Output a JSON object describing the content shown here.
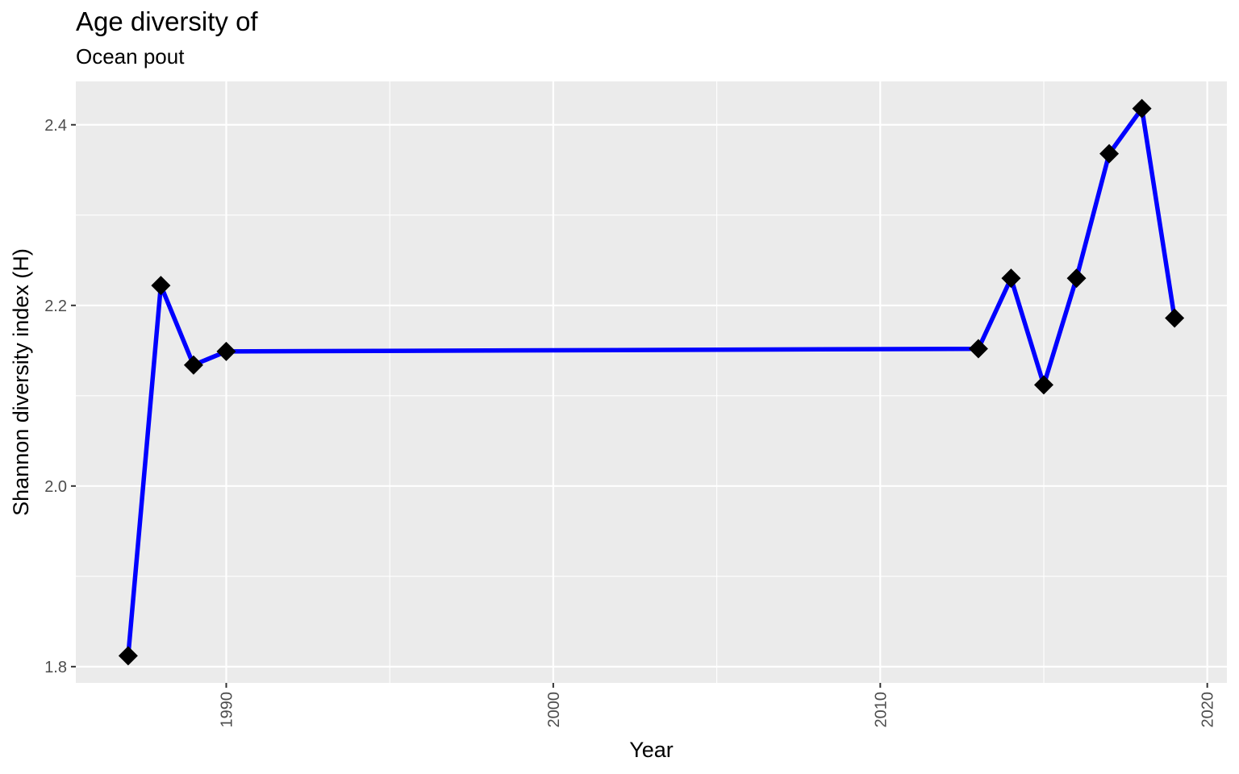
{
  "chart_data": {
    "type": "line",
    "title": "Age diversity of",
    "subtitle": "Ocean pout",
    "xlabel": "Year",
    "ylabel": "Shannon diversity index (H)",
    "xlim": [
      1985.4,
      2020.6
    ],
    "ylim": [
      1.782,
      2.448
    ],
    "x_ticks": [
      1990,
      2000,
      2010,
      2020
    ],
    "y_ticks": [
      1.8,
      2.0,
      2.2,
      2.4
    ],
    "x_tick_labels": [
      "1990",
      "2000",
      "2010",
      "2020"
    ],
    "y_tick_labels": [
      "1.8",
      "2.0",
      "2.2",
      "2.4"
    ],
    "x_minor_ticks": [
      1995,
      2005,
      2015
    ],
    "y_minor_ticks": [
      1.9,
      2.1,
      2.3
    ],
    "grid": true,
    "background": "#ebebeb",
    "grid_color": "#ffffff",
    "series": [
      {
        "line_color": "#0000ff",
        "marker": "diamond",
        "marker_color": "#000000",
        "points": [
          {
            "x": 1987,
            "y": 1.812
          },
          {
            "x": 1988,
            "y": 2.222
          },
          {
            "x": 1989,
            "y": 2.134
          },
          {
            "x": 1990,
            "y": 2.149
          },
          {
            "x": 2013,
            "y": 2.152
          },
          {
            "x": 2014,
            "y": 2.23
          },
          {
            "x": 2015,
            "y": 2.112
          },
          {
            "x": 2016,
            "y": 2.23
          },
          {
            "x": 2017,
            "y": 2.368
          },
          {
            "x": 2018,
            "y": 2.418
          },
          {
            "x": 2019,
            "y": 2.186
          }
        ]
      }
    ]
  }
}
